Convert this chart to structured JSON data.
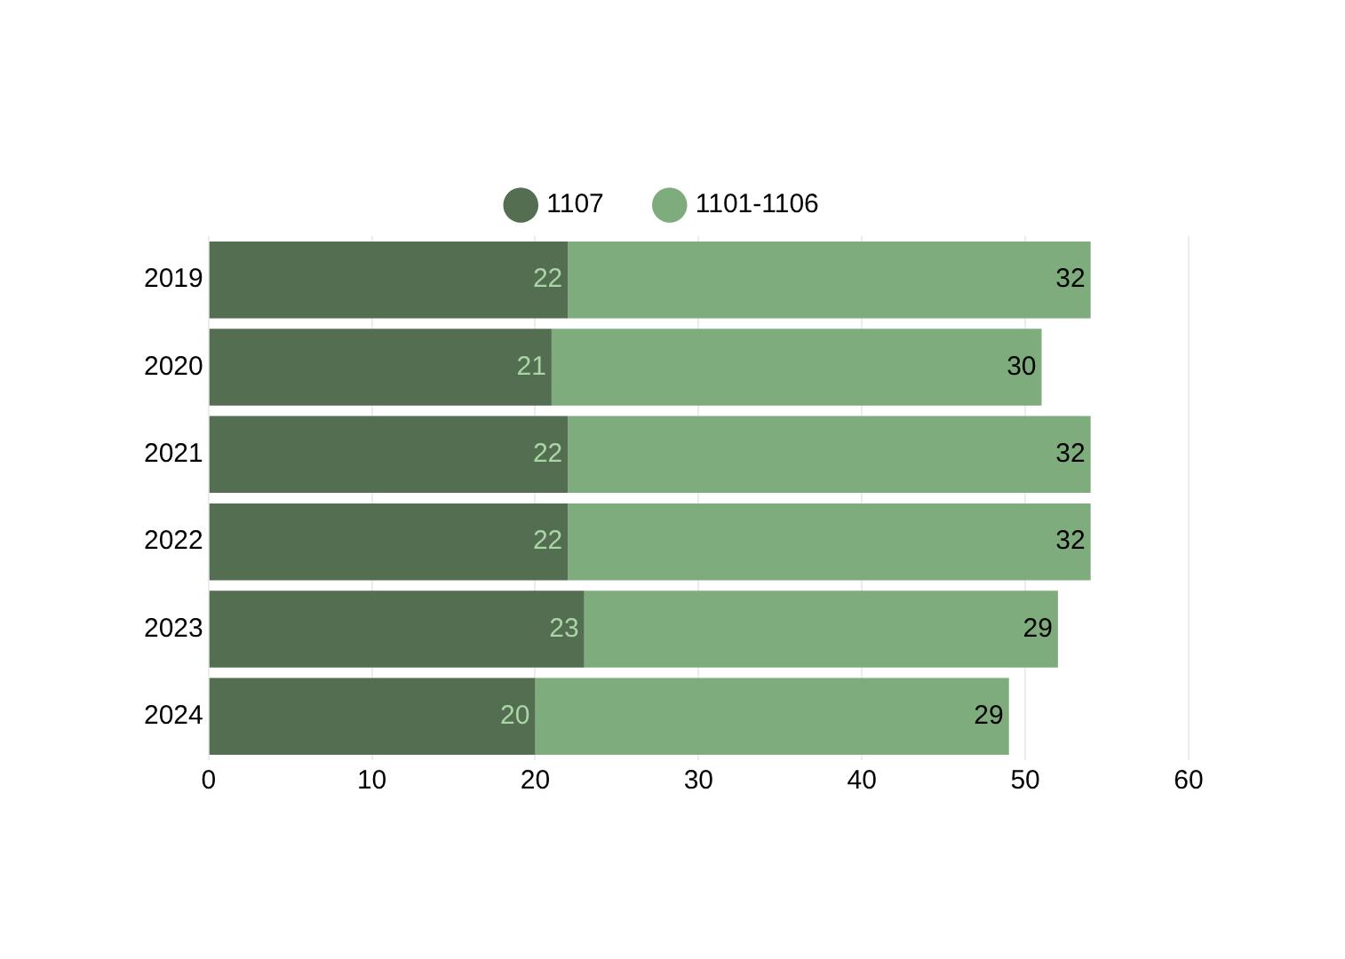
{
  "chart_data": {
    "type": "bar",
    "orientation": "horizontal",
    "stacked": true,
    "categories": [
      "2019",
      "2020",
      "2021",
      "2022",
      "2023",
      "2024"
    ],
    "series": [
      {
        "name": "1107",
        "color": "#536e50",
        "values": [
          22,
          21,
          22,
          22,
          23,
          20
        ]
      },
      {
        "name": "1101-1106",
        "color": "#7fac7c",
        "values": [
          32,
          30,
          32,
          32,
          29,
          29
        ]
      }
    ],
    "xlim": [
      0,
      60
    ],
    "xticks": [
      0,
      10,
      20,
      30,
      40,
      50,
      60
    ],
    "grid": "x",
    "legend": "top",
    "data_labels": true
  }
}
